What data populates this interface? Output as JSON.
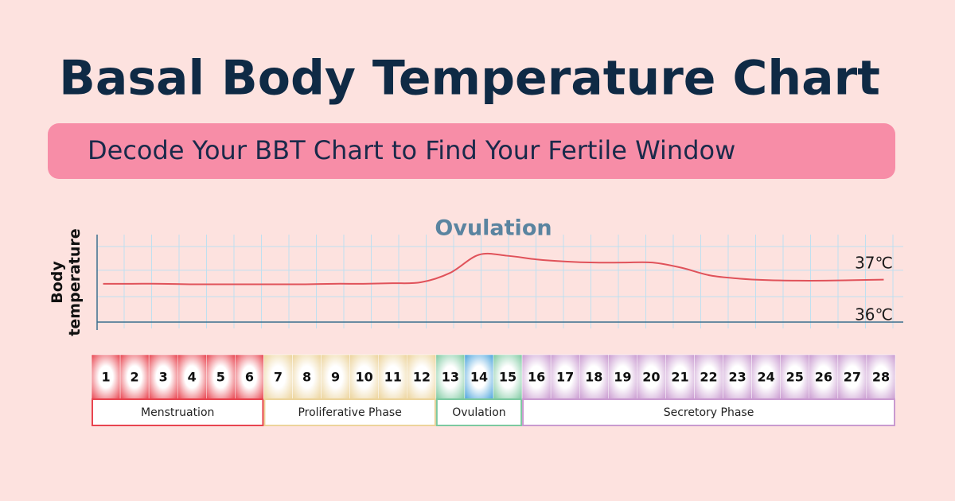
{
  "title": "Basal Body Temperature Chart",
  "subtitle": "Decode Your BBT Chart to Find Your Fertile Window",
  "chart_data": {
    "type": "line",
    "annotation": "Ovulation",
    "y_label": "Body temperature",
    "x": [
      1,
      2,
      3,
      4,
      5,
      6,
      7,
      8,
      9,
      10,
      11,
      12,
      13,
      14,
      15,
      16,
      17,
      18,
      19,
      20,
      21,
      22,
      23,
      24,
      25,
      26,
      27,
      28
    ],
    "series": [
      {
        "color": "#e0525a",
        "values": [
          36.74,
          36.74,
          36.74,
          36.73,
          36.73,
          36.73,
          36.73,
          36.73,
          36.74,
          36.74,
          36.75,
          36.77,
          36.95,
          37.3,
          37.28,
          37.21,
          37.17,
          37.15,
          37.15,
          37.15,
          37.05,
          36.9,
          36.84,
          36.81,
          36.8,
          36.8,
          36.81,
          36.82
        ]
      }
    ],
    "xlim": [
      0.6,
      28.4
    ],
    "ylim": [
      36,
      37.69
    ],
    "yticks": [
      {
        "value": 36,
        "label": "36℃"
      },
      {
        "value": 37,
        "label": "37℃"
      }
    ],
    "grid": true
  },
  "phases": [
    {
      "name": "Menstruation",
      "colors": [
        "#e8444f",
        "#e8444f",
        "#e8444f",
        "#e8444f",
        "#e8444f",
        "#e8444f"
      ]
    },
    {
      "name": "Proliferative Phase",
      "colors": [
        "#ecd39a",
        "#ecd39a",
        "#ecd39a",
        "#ecd39a",
        "#ecd39a",
        "#ecd39a"
      ]
    },
    {
      "name": "Ovulation",
      "colors": [
        "#7cc9a0",
        "#4aa3dc",
        "#7cc9a0"
      ]
    },
    {
      "name": "Secretory Phase",
      "colors": [
        "#c99ad0",
        "#c99ad0",
        "#c99ad0",
        "#c99ad0",
        "#c99ad0",
        "#c99ad0",
        "#c99ad0",
        "#c99ad0",
        "#c99ad0",
        "#c99ad0",
        "#c99ad0",
        "#c99ad0",
        "#c99ad0"
      ]
    }
  ]
}
